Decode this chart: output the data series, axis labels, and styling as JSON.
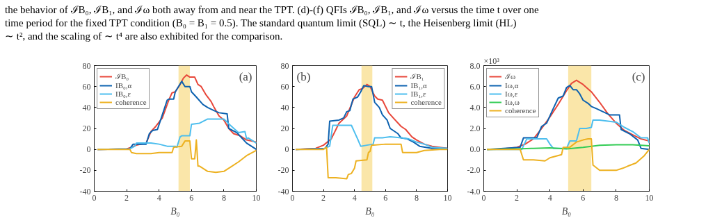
{
  "chart_data": [
    {
      "type": "line",
      "title": "the behavior of ℐB₀, ℐB₁, and ℐω both away from and near the TPT. (d)-(f) QFIs ℐB₀, ℐB₁, and ℐω versus the time t over one\ntime period for the fixed TPT condition (B₀ = B₁ = 0.5). The standard quantum limit (SQL) ∼ t, the Heisenberg limit (HL)\n∼ t², and the scaling of ∼ t⁴ are also exhibited for the comparison.",
      "xlabel": "B₀",
      "xlim": [
        0,
        10
      ],
      "xticks": [
        0,
        2,
        4,
        6,
        8,
        10
      ],
      "ylim": [
        -40,
        80
      ],
      "yticks": [
        -40,
        -20,
        0,
        20,
        40,
        60,
        80
      ],
      "grid": false,
      "legend": "top left",
      "annotations": [
        "(a)"
      ],
      "bands": [
        {
          "axis": "x",
          "from": 5.2,
          "to": 5.9,
          "color": "#f9e3a0"
        }
      ],
      "series": [
        {
          "name": "ℐB₀",
          "color": "#e8473a",
          "x": [
            0.2,
            2,
            2.3,
            2.6,
            3.2,
            3.5,
            3.8,
            4.2,
            4.6,
            4.8,
            5.0,
            5.3,
            5.5,
            5.7,
            5.9,
            6.2,
            6.4,
            6.6,
            6.9,
            7.2,
            7.4,
            7.7,
            8.0,
            8.3,
            8.6,
            9.0,
            9.4,
            9.7,
            10
          ],
          "values": [
            0,
            0.5,
            2,
            4,
            6,
            17,
            22,
            30,
            47,
            54,
            55,
            62,
            68,
            71,
            69,
            69,
            62,
            60,
            52,
            46,
            40,
            32,
            28,
            20,
            15,
            13,
            9,
            8,
            7
          ]
        },
        {
          "name": "IB₀,α",
          "color": "#0d62b0",
          "x": [
            0.2,
            2.2,
            2.4,
            3.2,
            3.4,
            3.6,
            3.9,
            4.2,
            4.5,
            4.6,
            4.9,
            5.0,
            5.2,
            5.4,
            5.6,
            5.9,
            6.0,
            6.3,
            6.7,
            7.0,
            7.4,
            7.7,
            8.2,
            8.3,
            8.8,
            9.4,
            9.9,
            10
          ],
          "values": [
            0,
            0.5,
            5,
            5,
            15,
            18,
            19,
            33,
            47,
            48,
            48,
            55,
            60,
            65,
            60,
            60,
            55,
            50,
            43,
            40,
            37,
            35,
            34,
            20,
            16,
            6,
            1,
            0
          ]
        },
        {
          "name": "IB₀,ε",
          "color": "#4dbeee",
          "x": [
            0.2,
            2.2,
            2.5,
            2.6,
            3.5,
            4.0,
            4.5,
            5.0,
            5.1,
            5.3,
            5.4,
            5.9,
            6.0,
            6.5,
            7.0,
            8.0,
            8.4,
            8.9,
            9.3,
            9.4,
            9.5,
            10
          ],
          "values": [
            0,
            0.5,
            3,
            6,
            6,
            5,
            3,
            3,
            2,
            12,
            13,
            13,
            24,
            25,
            29,
            29,
            23,
            16,
            17,
            10,
            11,
            6
          ]
        },
        {
          "name": "coherence",
          "color": "#edb120",
          "x": [
            0.2,
            2.2,
            2.3,
            2.6,
            3.5,
            4.0,
            4.8,
            4.9,
            5.4,
            5.6,
            5.9,
            6.0,
            6.2,
            6.3,
            6.4,
            6.5,
            7.0,
            7.5,
            8.0,
            8.4,
            8.9,
            9.4,
            10
          ],
          "values": [
            0,
            0,
            -3,
            -4,
            -4,
            -3,
            -3,
            2,
            3,
            8,
            8,
            -9,
            -9,
            9,
            -16,
            -16,
            -21,
            -22,
            -21,
            -17,
            -12,
            -6,
            -1
          ]
        }
      ]
    },
    {
      "type": "line",
      "xlabel": "B₀",
      "xlim": [
        0,
        10
      ],
      "xticks": [
        0,
        2,
        4,
        6,
        8,
        10
      ],
      "ylim": [
        -40,
        80
      ],
      "yticks": [
        -40,
        -20,
        0,
        20,
        40,
        60,
        80
      ],
      "grid": false,
      "legend": "top right",
      "annotations": [
        "(b)"
      ],
      "bands": [
        {
          "axis": "x",
          "from": 4.45,
          "to": 5.15,
          "color": "#f9e3a0"
        }
      ],
      "series": [
        {
          "name": "ℐB₁",
          "color": "#e8473a",
          "x": [
            0.2,
            1.5,
            2.0,
            2.5,
            3.0,
            3.5,
            4.0,
            4.3,
            4.5,
            4.8,
            5.0,
            5.3,
            5.5,
            5.8,
            6.2,
            6.5,
            7.0,
            7.3,
            7.7,
            8.0,
            8.5,
            9.0,
            9.5,
            10
          ],
          "values": [
            0,
            1,
            4,
            10,
            25,
            32,
            50,
            57,
            58,
            62,
            60,
            51,
            48,
            47,
            35,
            30,
            22,
            19,
            12,
            9,
            5,
            3,
            2,
            1
          ]
        },
        {
          "name": "IB₁,α",
          "color": "#0d62b0",
          "x": [
            0.2,
            2.1,
            2.3,
            2.4,
            3.0,
            3.3,
            3.5,
            3.7,
            3.9,
            4.2,
            4.4,
            4.6,
            4.9,
            5.1,
            5.3,
            5.6,
            5.8,
            6.1,
            6.3,
            6.8,
            7.0,
            7.4,
            7.8,
            8.2,
            8.6,
            9.0,
            9.5,
            10
          ],
          "values": [
            0,
            1,
            5,
            27,
            28,
            30,
            36,
            37,
            48,
            50,
            55,
            61,
            60,
            60,
            45,
            40,
            33,
            28,
            20,
            15,
            11,
            10,
            7,
            3,
            2,
            1,
            1,
            1
          ]
        },
        {
          "name": "IB₁,ε",
          "color": "#4dbeee",
          "x": [
            0.2,
            2.0,
            2.4,
            2.6,
            3.8,
            4.2,
            4.4,
            4.8,
            5.2,
            5.3,
            5.8,
            6.3,
            7.0,
            7.5,
            8.0,
            8.5,
            9.0,
            10
          ],
          "values": [
            0,
            0.5,
            3,
            23,
            23,
            10,
            3,
            4,
            5,
            11,
            11,
            12,
            11,
            10,
            7,
            5,
            2,
            1
          ]
        },
        {
          "name": "coherence",
          "color": "#edb120",
          "x": [
            0.2,
            2.0,
            2.2,
            2.3,
            2.8,
            3.5,
            3.6,
            3.8,
            4.0,
            4.1,
            4.8,
            4.9,
            5.0,
            5.1,
            6.0,
            7.0,
            7.1,
            8.0,
            8.5,
            9.5,
            10
          ],
          "values": [
            0,
            0,
            2,
            -27,
            -27,
            -28,
            -24,
            -23,
            -18,
            -11,
            -10,
            -3,
            -2,
            4,
            5,
            5,
            -3,
            -3,
            -1,
            0,
            0
          ]
        }
      ]
    },
    {
      "type": "line",
      "xlabel": "B₀",
      "xlim": [
        0,
        10
      ],
      "xticks": [
        0,
        2,
        4,
        6,
        8,
        10
      ],
      "ylim": [
        -4,
        8
      ],
      "yticks": [
        {
          "value": -4,
          "label": "-4.0"
        },
        {
          "value": -2,
          "label": "-2.0"
        },
        {
          "value": 0,
          "label": "0.0"
        },
        {
          "value": 2,
          "label": "2.0"
        },
        {
          "value": 4,
          "label": "4.0"
        },
        {
          "value": 6,
          "label": "6.0"
        },
        {
          "value": 8,
          "label": "8.0"
        }
      ],
      "grid": false,
      "legend": "top left",
      "annotations": [
        "(c)",
        "×10³"
      ],
      "bands": [
        {
          "axis": "x",
          "from": 5.1,
          "to": 6.5,
          "color": "#f9e3a0"
        }
      ],
      "series": [
        {
          "name": "ℐω",
          "color": "#e8473a",
          "x": [
            0.2,
            1,
            2,
            2.5,
            3,
            3.5,
            4,
            4.5,
            5.0,
            5.3,
            5.6,
            6.0,
            6.5,
            7.0,
            7.5,
            8.0,
            8.5,
            9.0,
            9.5,
            10
          ],
          "values": [
            0,
            0.02,
            0.2,
            0.5,
            1.0,
            2.0,
            3.1,
            4.3,
            5.6,
            6.3,
            6.6,
            6.2,
            5.5,
            4.5,
            3.4,
            2.5,
            1.8,
            1.4,
            1.0,
            0.8
          ]
        },
        {
          "name": "Iω,α",
          "color": "#0d62b0",
          "x": [
            0.2,
            2.2,
            2.4,
            3.2,
            3.5,
            3.8,
            4.2,
            4.5,
            4.8,
            5.0,
            5.2,
            5.4,
            5.6,
            5.8,
            6.0,
            6.3,
            6.5,
            6.8,
            7.2,
            7.6,
            8.2,
            8.3,
            8.8,
            9.3,
            9.5,
            10
          ],
          "values": [
            0,
            0.2,
            1.1,
            1.1,
            2.2,
            2.5,
            3.9,
            4.9,
            5.1,
            5.9,
            6.1,
            5.7,
            5.7,
            5.3,
            4.7,
            4.4,
            4.1,
            3.9,
            3.6,
            3.3,
            3.3,
            1.9,
            1.5,
            0.9,
            0.1,
            0
          ]
        },
        {
          "name": "Iω,ε",
          "color": "#4dbeee",
          "x": [
            0.2,
            2.3,
            2.6,
            3.8,
            4.0,
            4.2,
            5.0,
            5.2,
            5.6,
            5.8,
            6.2,
            6.5,
            6.6,
            7.0,
            8.0,
            8.5,
            9.0,
            9.5,
            9.9,
            10
          ],
          "values": [
            0,
            0,
            1.0,
            1.0,
            0.5,
            0.1,
            0.1,
            0.8,
            0.8,
            2.0,
            2.0,
            2.1,
            2.8,
            2.8,
            2.6,
            2.1,
            1.7,
            1.1,
            1.1,
            0.6
          ]
        },
        {
          "name": "Iω,ω",
          "color": "#33cc55",
          "x": [
            0.2,
            2,
            3,
            4,
            5,
            6,
            7,
            8,
            9,
            10
          ],
          "values": [
            0,
            0.05,
            0.1,
            0.15,
            0.05,
            0.2,
            0.4,
            0.45,
            0.45,
            0.35
          ]
        },
        {
          "name": "coherence",
          "color": "#edb120",
          "x": [
            0.2,
            2.2,
            2.3,
            2.4,
            3.0,
            3.7,
            4.0,
            4.7,
            4.8,
            5.2,
            5.6,
            5.8,
            6.0,
            6.3,
            6.5,
            6.6,
            7.0,
            7.5,
            8.0,
            8.4,
            8.7,
            9.2,
            9.7,
            10
          ],
          "values": [
            0,
            0,
            -0.5,
            -1.0,
            -1.0,
            -1.1,
            -0.8,
            -0.5,
            0.2,
            0.2,
            0.7,
            0.8,
            0.9,
            1.0,
            1.0,
            -1.5,
            -2.0,
            -2.0,
            -2.0,
            -1.8,
            -1.6,
            -1.3,
            -0.6,
            0
          ]
        }
      ]
    }
  ]
}
